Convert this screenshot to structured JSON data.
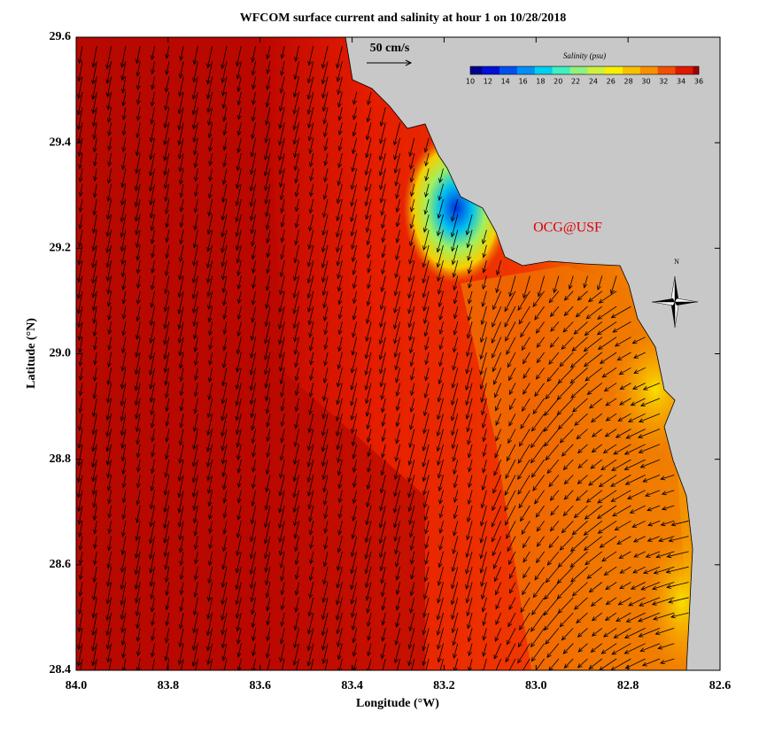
{
  "title": "WFCOM surface current and salinity at hour 1 on 10/28/2018",
  "x_axis": {
    "label": "Longitude (°W)",
    "range": [
      84.0,
      82.6
    ],
    "ticks": [
      {
        "value": 84.0,
        "label": "84.0"
      },
      {
        "value": 83.8,
        "label": "83.8"
      },
      {
        "value": 83.6,
        "label": "83.6"
      },
      {
        "value": 83.4,
        "label": "83.4"
      },
      {
        "value": 83.2,
        "label": "83.2"
      },
      {
        "value": 83.0,
        "label": "83.0"
      },
      {
        "value": 82.8,
        "label": "82.8"
      },
      {
        "value": 82.6,
        "label": "82.6"
      }
    ]
  },
  "y_axis": {
    "label": "Latitude (°N)",
    "range": [
      28.4,
      29.6
    ],
    "ticks": [
      {
        "value": 28.4,
        "label": "28.4"
      },
      {
        "value": 28.6,
        "label": "28.6"
      },
      {
        "value": 28.8,
        "label": "28.8"
      },
      {
        "value": 29.0,
        "label": "29.0"
      },
      {
        "value": 29.2,
        "label": "29.2"
      },
      {
        "value": 29.4,
        "label": "29.4"
      },
      {
        "value": 29.6,
        "label": "29.6"
      }
    ]
  },
  "colorbar": {
    "title": "Salinity (psu)",
    "ticks": [
      10,
      12,
      14,
      16,
      18,
      20,
      22,
      24,
      26,
      28,
      30,
      32,
      34,
      36
    ],
    "colors": [
      "#00008c",
      "#0010d8",
      "#0050f0",
      "#0090f8",
      "#00d0f0",
      "#40f0c0",
      "#90f080",
      "#d0f040",
      "#f8f000",
      "#f8c000",
      "#f89000",
      "#f05000",
      "#e01800",
      "#a00000"
    ]
  },
  "vector_scale": "50 cm/s",
  "credit": "OCG@USF",
  "compass": "N"
}
